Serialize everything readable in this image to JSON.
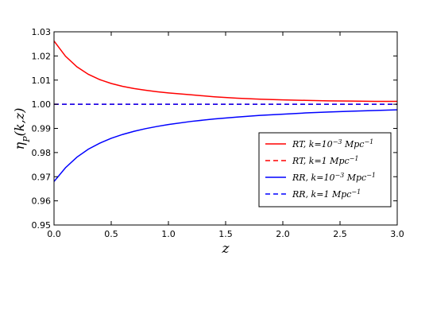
{
  "chart_data": {
    "type": "line",
    "xlabel": "z",
    "ylabel": "ηP(k,z)",
    "xlim": [
      0.0,
      3.0
    ],
    "ylim": [
      0.95,
      1.03
    ],
    "x_ticks": [
      "0.0",
      "0.5",
      "1.0",
      "1.5",
      "2.0",
      "2.5",
      "3.0"
    ],
    "y_ticks": [
      "0.95",
      "0.96",
      "0.97",
      "0.98",
      "0.99",
      "1.00",
      "1.01",
      "1.02",
      "1.03"
    ],
    "x_tick_values": [
      0.0,
      0.5,
      1.0,
      1.5,
      2.0,
      2.5,
      3.0
    ],
    "y_tick_values": [
      0.95,
      0.96,
      0.97,
      0.98,
      0.99,
      1.0,
      1.01,
      1.02,
      1.03
    ],
    "grid": false,
    "legend_position": "center-right",
    "x": [
      0.0,
      0.1,
      0.2,
      0.3,
      0.4,
      0.5,
      0.6,
      0.7,
      0.8,
      0.9,
      1.0,
      1.2,
      1.4,
      1.6,
      1.8,
      2.0,
      2.2,
      2.4,
      2.6,
      2.8,
      3.0
    ],
    "series": [
      {
        "name": "RT, k=10⁻³ Mpc⁻¹",
        "color": "#ff0000",
        "style": "solid",
        "y": [
          1.0262,
          1.0199,
          1.0155,
          1.0124,
          1.0102,
          1.0086,
          1.0074,
          1.0065,
          1.0058,
          1.0052,
          1.0047,
          1.0039,
          1.0031,
          1.0025,
          1.0021,
          1.0018,
          1.0016,
          1.0014,
          1.0013,
          1.0012,
          1.0012
        ]
      },
      {
        "name": "RT, k=1Mpc⁻¹",
        "color": "#ff0000",
        "style": "dashed",
        "y": [
          1.0,
          1.0,
          1.0,
          1.0,
          1.0,
          1.0,
          1.0,
          1.0,
          1.0,
          1.0,
          1.0,
          1.0,
          1.0,
          1.0,
          1.0,
          1.0,
          1.0,
          1.0,
          1.0,
          1.0,
          1.0
        ]
      },
      {
        "name": "RR, k=10⁻³ Mpc⁻¹",
        "color": "#0000ff",
        "style": "solid",
        "y": [
          0.968,
          0.9737,
          0.9781,
          0.9814,
          0.9839,
          0.9859,
          0.9875,
          0.9888,
          0.9899,
          0.9908,
          0.9916,
          0.9929,
          0.9939,
          0.9947,
          0.9954,
          0.9959,
          0.9964,
          0.9968,
          0.9971,
          0.9974,
          0.9977
        ]
      },
      {
        "name": "RR, k=1Mpc⁻¹",
        "color": "#0000ff",
        "style": "dashed",
        "y": [
          1.0,
          1.0,
          1.0,
          1.0,
          1.0,
          1.0,
          1.0,
          1.0,
          1.0,
          1.0,
          1.0,
          1.0,
          1.0,
          1.0,
          1.0,
          1.0,
          1.0,
          1.0,
          1.0,
          1.0,
          1.0
        ]
      }
    ],
    "legend": [
      {
        "prefix": "RT",
        "k_text": "k=10",
        "exp": "−3",
        "unit": "Mpc",
        "unit_exp": "−1",
        "color": "#ff0000",
        "style": "solid"
      },
      {
        "prefix": "RT",
        "k_text": "k=1",
        "exp": "",
        "unit": "Mpc",
        "unit_exp": "−1",
        "color": "#ff0000",
        "style": "dashed"
      },
      {
        "prefix": "RR",
        "k_text": "k=10",
        "exp": "−3",
        "unit": "Mpc",
        "unit_exp": "−1",
        "color": "#0000ff",
        "style": "solid"
      },
      {
        "prefix": "RR",
        "k_text": "k=1",
        "exp": "",
        "unit": "Mpc",
        "unit_exp": "−1",
        "color": "#0000ff",
        "style": "dashed"
      }
    ]
  }
}
